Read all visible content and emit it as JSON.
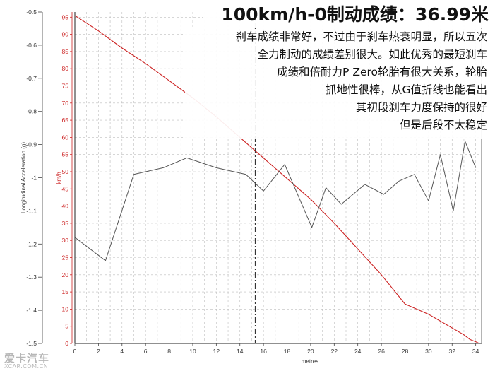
{
  "title": "100km/h-0制动成绩：36.99米",
  "description": [
    "刹车成绩非常好，不过由于刹车热衰明显，所以五次",
    "全力制动的成绩差别很大。如此优秀的最短刹车",
    "成绩和倍耐力P Zero轮胎有很大关系，轮胎",
    "抓地性很棒，从G值折线也能看出",
    "其初段刹车力度保持的很好",
    "但是后段不太稳定"
  ],
  "watermark": {
    "main": "爱卡汽车",
    "sub": "XCAR.COM.CN"
  },
  "colors": {
    "speed": "#cc2222",
    "accel": "#555555",
    "grid": "#bdbdbd",
    "marker": "#333333"
  },
  "chart_data": {
    "type": "line",
    "xlabel": "metres",
    "x_ticks": [
      0,
      2,
      4,
      6,
      8,
      10,
      12,
      14,
      16,
      18,
      20,
      22,
      24,
      26,
      28,
      30,
      32,
      34
    ],
    "xlim": [
      0,
      34.5
    ],
    "y_left": {
      "label": "Longitudinal Acceleration (g)",
      "ticks": [
        -0.5,
        -0.6,
        -0.7,
        -0.8,
        -0.9,
        -1,
        -1.1,
        -1.2,
        -1.3,
        -1.4,
        -1.5
      ],
      "tick_labels": [
        "-0.5",
        "-0.6",
        "-0.7",
        "-0.8",
        "-0.9",
        "-1",
        "-1.1",
        "-1.2",
        "-1.3",
        "-1.4",
        "-1.5"
      ],
      "lim": [
        -1.5,
        -0.5
      ]
    },
    "y_right": {
      "label": "km/h",
      "ticks": [
        0,
        5,
        10,
        15,
        20,
        25,
        30,
        35,
        40,
        45,
        50,
        55,
        60,
        65,
        70,
        75,
        80,
        85,
        90,
        95
      ],
      "lim": [
        0,
        96.5
      ]
    },
    "marker_x": 15.3,
    "series": [
      {
        "name": "km/h",
        "axis": "right",
        "x": [
          0,
          2,
          4,
          6,
          8,
          10,
          12,
          14,
          16,
          18,
          20,
          22,
          24,
          26,
          28,
          30,
          31,
          32,
          33,
          33.5,
          34,
          34.3
        ],
        "values": [
          95.5,
          91,
          86,
          81.5,
          76.5,
          71.5,
          66,
          60,
          54,
          48,
          42,
          35,
          27.5,
          20,
          11.5,
          8.5,
          6.5,
          4.5,
          2.5,
          1.2,
          0.5,
          0
        ]
      },
      {
        "name": "Longitudinal Acceleration (g)",
        "axis": "left",
        "x": [
          0,
          2.6,
          5,
          7.5,
          9.5,
          12,
          14.5,
          16,
          17.8,
          20.1,
          21.3,
          22.6,
          24.6,
          26.2,
          27.5,
          28.8,
          30,
          31,
          32.1,
          33.1,
          34
        ],
        "values": [
          -1.18,
          -1.25,
          -0.99,
          -0.97,
          -0.94,
          -0.97,
          -0.99,
          -1.04,
          -0.96,
          -1.15,
          -1.03,
          -1.08,
          -1.02,
          -1.05,
          -1.01,
          -0.99,
          -1.07,
          -0.93,
          -1.1,
          -0.89,
          -0.97
        ]
      }
    ]
  }
}
